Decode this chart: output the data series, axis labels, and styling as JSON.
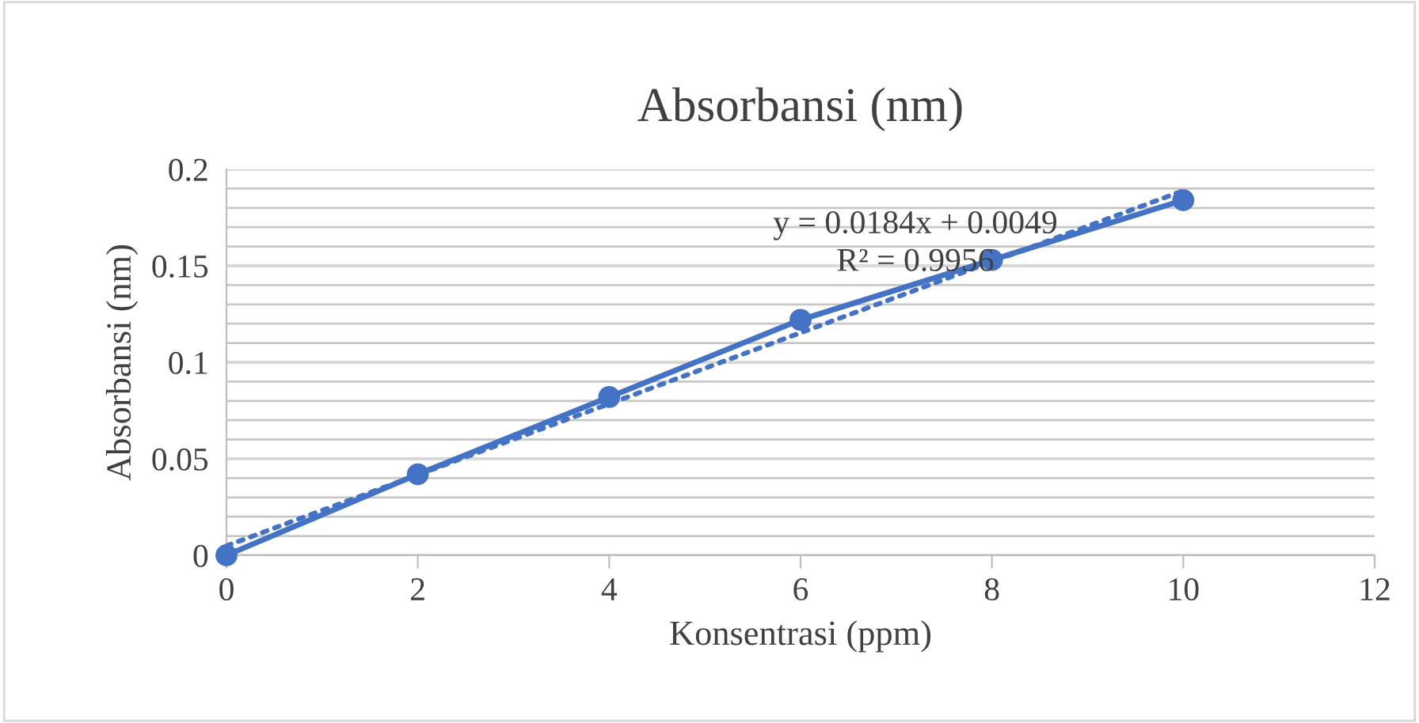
{
  "chart_data": {
    "type": "line",
    "title": "Absorbansi (nm)",
    "xlabel": "Konsentrasi (ppm)",
    "ylabel": "Absorbansi (nm)",
    "x": [
      0,
      2,
      4,
      6,
      8,
      10
    ],
    "series": [
      {
        "color": "#4472c4",
        "values": [
          0,
          0.042,
          0.082,
          0.122,
          0.153,
          0.184
        ],
        "marker": "circle",
        "line_style": "solid"
      },
      {
        "type": "line",
        "color": "#4472c4",
        "x": [
          0,
          10
        ],
        "values": [
          0.0049,
          0.1889
        ],
        "marker": "none",
        "line_style": "dotted"
      }
    ],
    "xlim": [
      0,
      12
    ],
    "xticks": [
      0,
      2,
      4,
      6,
      8,
      10,
      12
    ],
    "ylim": [
      0,
      0.2
    ],
    "yticks": [
      0,
      {
        "value": 0.01,
        "label": null
      },
      {
        "value": 0.02,
        "label": null
      },
      {
        "value": 0.03,
        "label": null
      },
      {
        "value": 0.04,
        "label": null
      },
      0.05,
      {
        "value": 0.06,
        "label": null
      },
      {
        "value": 0.07,
        "label": null
      },
      {
        "value": 0.08,
        "label": null
      },
      {
        "value": 0.09,
        "label": null
      },
      0.1,
      {
        "value": 0.11,
        "label": null
      },
      {
        "value": 0.12,
        "label": null
      },
      {
        "value": 0.13,
        "label": null
      },
      {
        "value": 0.14,
        "label": null
      },
      0.15,
      {
        "value": 0.16,
        "label": null
      },
      {
        "value": 0.17,
        "label": null
      },
      {
        "value": 0.18,
        "label": null
      },
      {
        "value": 0.19,
        "label": null
      },
      0.2
    ],
    "grid": "y",
    "annotations": [
      "y = 0.0184x + 0.0049",
      "R² = 0.9956"
    ]
  }
}
